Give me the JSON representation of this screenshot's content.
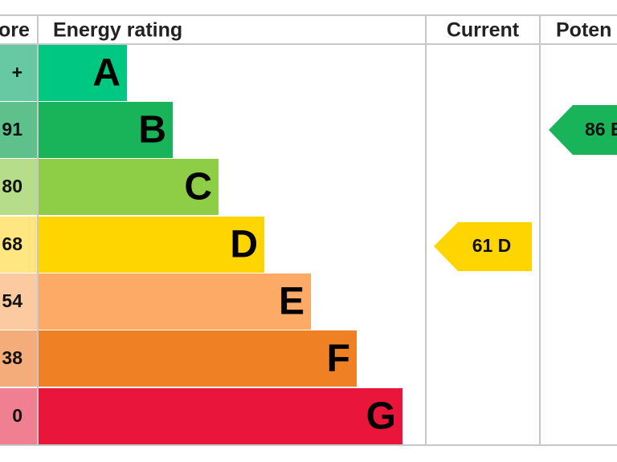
{
  "header": {
    "score": "ore",
    "rating": "Energy rating",
    "current": "Current",
    "potential": "Poten"
  },
  "rows": [
    {
      "score": "+",
      "letter": "A"
    },
    {
      "score": "91",
      "letter": "B"
    },
    {
      "score": "80",
      "letter": "C"
    },
    {
      "score": "68",
      "letter": "D"
    },
    {
      "score": "54",
      "letter": "E"
    },
    {
      "score": "38",
      "letter": "F"
    },
    {
      "score": "0",
      "letter": "G"
    }
  ],
  "current": "61 D",
  "potential": "86 B"
}
